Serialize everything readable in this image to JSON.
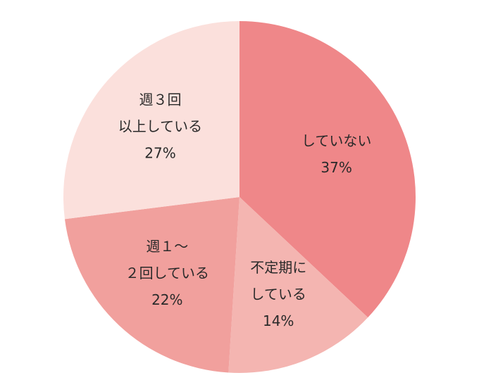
{
  "chart_data": {
    "type": "pie",
    "categories": [
      [
        "していない"
      ],
      [
        "不定期に",
        "している"
      ],
      [
        "週１～",
        "２回している"
      ],
      [
        "週３回",
        "以上している"
      ]
    ],
    "values": [
      37,
      14,
      22,
      27
    ],
    "value_labels": [
      "37%",
      "14%",
      "22%",
      "27%"
    ],
    "colors": [
      "#ef8789",
      "#f4b5b1",
      "#f1a09d",
      "#fbe0dc"
    ]
  }
}
